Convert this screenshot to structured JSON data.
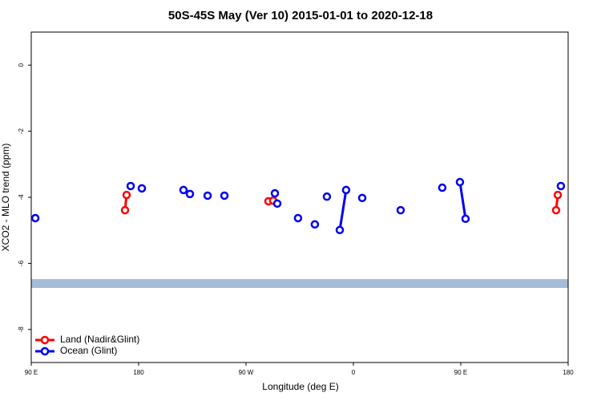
{
  "chart_data": {
    "type": "line",
    "title": "50S-45S May (Ver 10)   2015-01-01 to 2020-12-18",
    "x_label": "Longitude (deg E)",
    "y_label": "XCO2 - MLO trend (ppm)",
    "xlim": [
      90,
      540
    ],
    "ylim": [
      -9,
      1
    ],
    "xticks": [
      {
        "value": 90,
        "label": "90 E"
      },
      {
        "value": 180,
        "label": "180"
      },
      {
        "value": 270,
        "label": "90 W"
      },
      {
        "value": 360,
        "label": "0"
      },
      {
        "value": 450,
        "label": "90 E"
      },
      {
        "value": 540,
        "label": "180"
      }
    ],
    "yticks": [
      0,
      -2,
      -4,
      -6,
      -8
    ],
    "legend": "bottom-left",
    "series": [
      {
        "name": "Land (Nadir&Glint)",
        "color": "#ff0000",
        "x": [
          168.6,
          169.9,
          null,
          288.8,
          null,
          292.8,
          null,
          529.9,
          531.3
        ],
        "values": [
          -4.39,
          -3.93,
          null,
          -4.12,
          null,
          -4.1,
          null,
          -4.39,
          -3.93
        ]
      },
      {
        "name": "Ocean (Glint)",
        "color": "#0000ee",
        "x": [
          93.4,
          null,
          173.3,
          null,
          182.7,
          null,
          217.6,
          null,
          223.0,
          null,
          237.8,
          null,
          251.9,
          null,
          294.2,
          null,
          296.2,
          null,
          313.6,
          null,
          327.7,
          null,
          337.8,
          null,
          348.6,
          353.9,
          null,
          367.4,
          null,
          399.6,
          null,
          434.5,
          null,
          449.3,
          454.0,
          null,
          533.9
        ],
        "values": [
          -4.63,
          null,
          -3.66,
          null,
          -3.73,
          null,
          -3.78,
          null,
          -3.9,
          null,
          -3.95,
          null,
          -3.95,
          null,
          -3.88,
          null,
          -4.19,
          null,
          -4.63,
          null,
          -4.82,
          null,
          -3.98,
          null,
          -4.99,
          -3.78,
          null,
          -4.02,
          null,
          -4.39,
          null,
          -3.71,
          null,
          -3.54,
          -4.65,
          null,
          -3.66
        ]
      }
    ]
  }
}
